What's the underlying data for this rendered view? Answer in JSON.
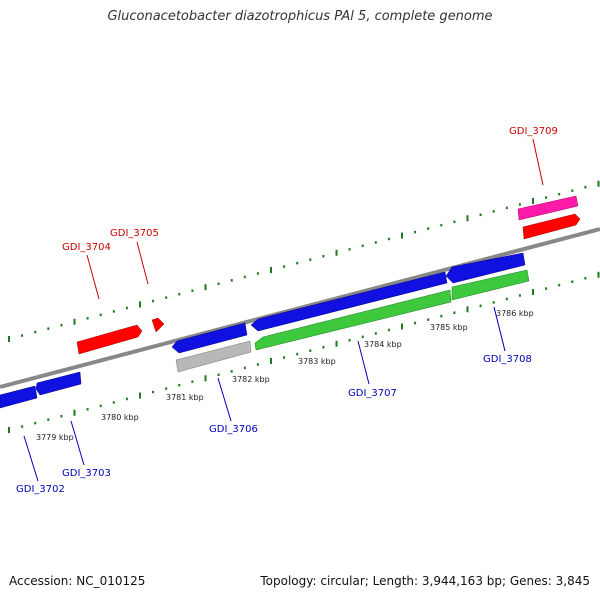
{
  "title": "Gluconacetobacter diazotrophicus PAl 5, complete genome",
  "footer": {
    "accession": "Accession: NC_010125",
    "stats": "Topology: circular; Length: 3,944,163 bp; Genes: 3,845"
  },
  "colors": {
    "backbone": "#8a8a8a",
    "tick": "#1f7a1f",
    "forward_label": "#cc0000",
    "reverse_label": "#0000bb",
    "gene_red": "#ff0000",
    "gene_blue": "#1010e0",
    "gene_green": "#3ec83e",
    "gene_grey": "#b8b8b8",
    "gene_magenta": "#ff1aa8"
  },
  "scale_labels": [
    "3779 kbp",
    "3780 kbp",
    "3781 kbp",
    "3782 kbp",
    "3783 kbp",
    "3784 kbp",
    "3785 kbp",
    "3786 kbp"
  ],
  "genes": [
    {
      "id": "GDI_3702",
      "color": "gene_blue",
      "strand": "reverse"
    },
    {
      "id": "GDI_3703",
      "color": "gene_blue",
      "strand": "reverse"
    },
    {
      "id": "GDI_3704",
      "color": "gene_red",
      "strand": "forward"
    },
    {
      "id": "GDI_3705",
      "color": "gene_red",
      "strand": "forward"
    },
    {
      "id": "GDI_3706",
      "color": "gene_blue",
      "strand": "reverse"
    },
    {
      "id": "GDI_3707",
      "color": "gene_green",
      "strand": "reverse"
    },
    {
      "id": "GDI_3708",
      "color": "gene_blue",
      "strand": "reverse"
    },
    {
      "id": "GDI_3709",
      "color": "gene_magenta",
      "strand": "forward"
    }
  ],
  "extra_features": [
    {
      "color": "gene_blue",
      "strand": "reverse"
    },
    {
      "color": "gene_grey",
      "strand": "reverse"
    },
    {
      "color": "gene_blue",
      "strand": "reverse"
    },
    {
      "color": "gene_green",
      "strand": "reverse"
    },
    {
      "color": "gene_red",
      "strand": "forward"
    }
  ]
}
